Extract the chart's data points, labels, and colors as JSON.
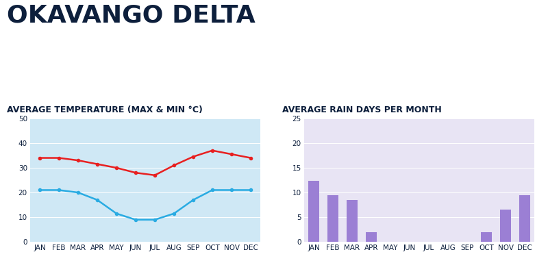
{
  "title": "OKAVANGO DELTA",
  "title_color": "#0d1f3c",
  "months": [
    "JAN",
    "FEB",
    "MAR",
    "APR",
    "MAY",
    "JUN",
    "JUL",
    "AUG",
    "SEP",
    "OCT",
    "NOV",
    "DEC"
  ],
  "temp_subtitle": "AVERAGE TEMPERATURE (MAX & MIN °C)",
  "rain_subtitle": "AVERAGE RAIN DAYS PER MONTH",
  "temp_max": [
    34,
    34,
    33,
    31.5,
    30,
    28,
    27,
    31,
    34.5,
    37,
    35.5,
    34
  ],
  "temp_min": [
    21,
    21,
    20,
    17,
    11.5,
    9,
    9,
    11.5,
    17,
    21,
    21,
    21
  ],
  "rain_days": [
    12.3,
    9.5,
    8.5,
    2,
    0,
    0,
    0,
    0,
    0,
    2,
    6.5,
    9.5
  ],
  "temp_bg": "#cfe8f5",
  "rain_bg": "#e8e4f4",
  "temp_max_color": "#e82020",
  "temp_min_color": "#29abe2",
  "rain_bar_color": "#9b7fd4",
  "temp_ylim": [
    0,
    50
  ],
  "temp_yticks": [
    0,
    10,
    20,
    30,
    40,
    50
  ],
  "rain_ylim": [
    0,
    25
  ],
  "rain_yticks": [
    0,
    5,
    10,
    15,
    20,
    25
  ],
  "title_fontsize": 26,
  "subtitle_fontsize": 9,
  "tick_fontsize": 7.5,
  "label_color": "#0d1f3c"
}
